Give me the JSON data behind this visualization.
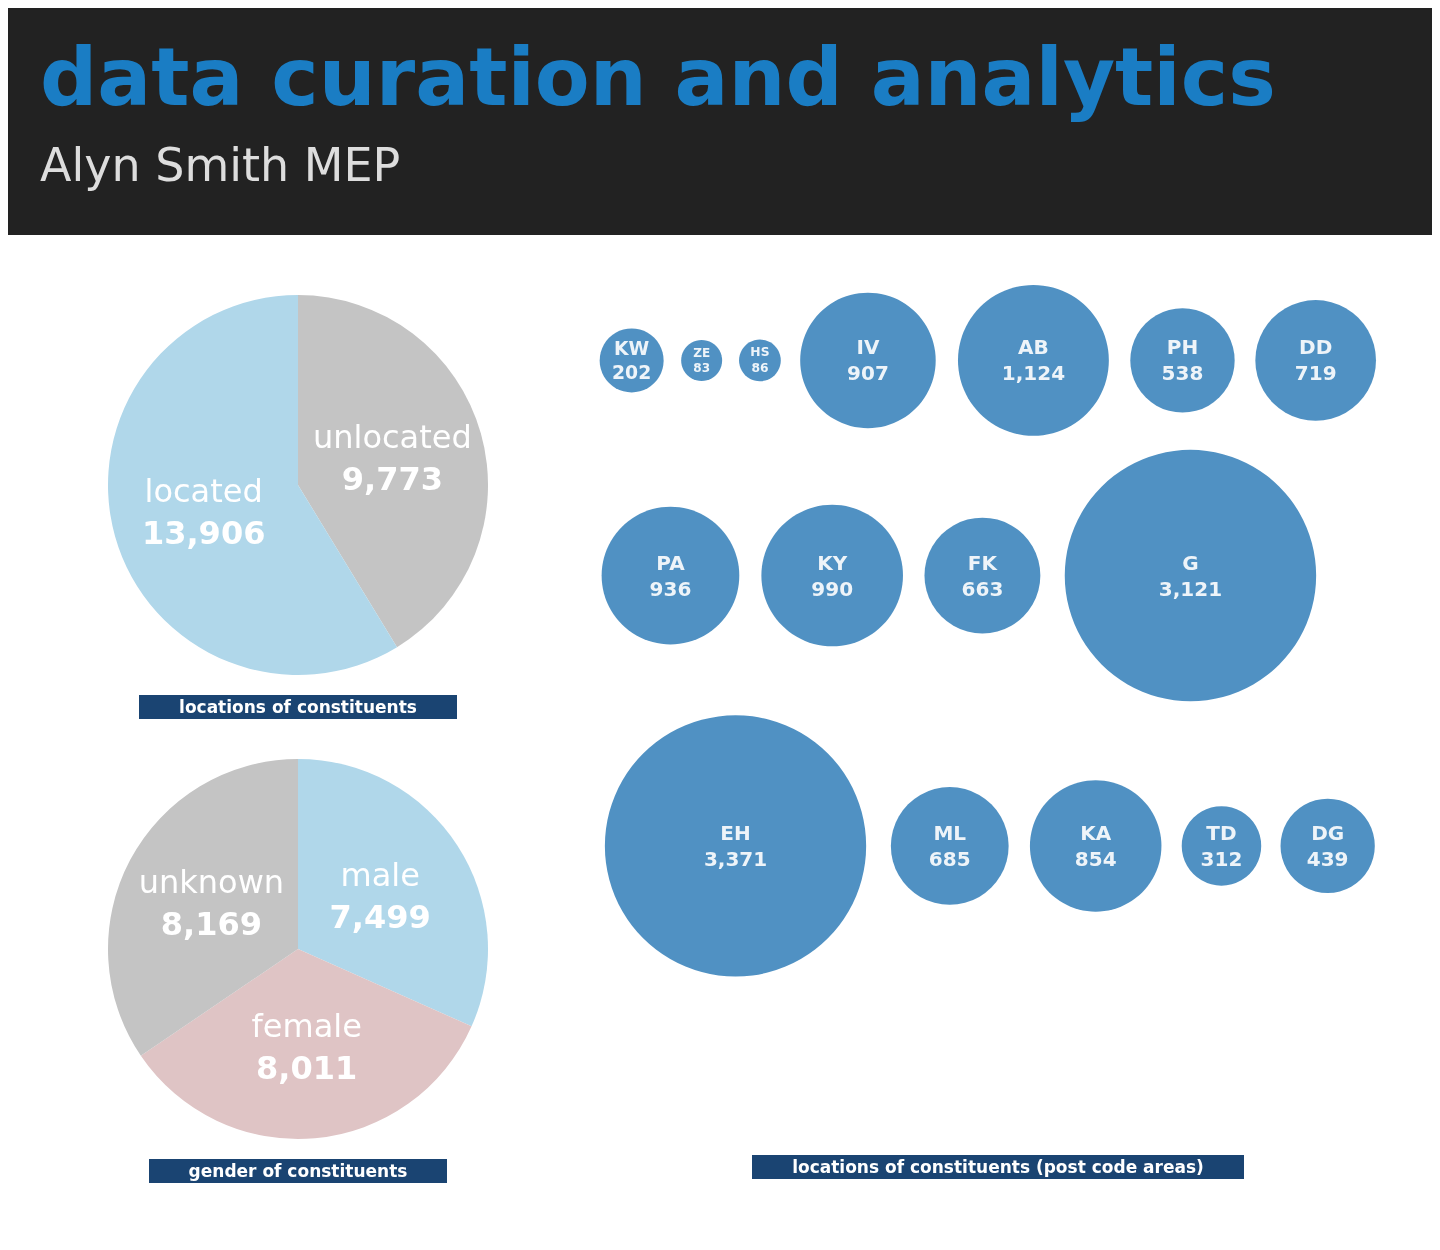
{
  "chart_data": [
    {
      "type": "pie",
      "title": "data curation and analytics",
      "subtitle": "Alyn Smith MEP",
      "categories": [
        "unlocated",
        "located"
      ],
      "values": [
        9773,
        13906
      ],
      "value_labels": [
        "9,773",
        "13,906"
      ],
      "colors": [
        "#c4c4c4",
        "#b0d7ea"
      ],
      "data_labels": true,
      "annotations": [
        "locations of constituents"
      ]
    },
    {
      "type": "pie",
      "categories": [
        "male",
        "female",
        "unknown"
      ],
      "values": [
        7499,
        8011,
        8169
      ],
      "value_labels": [
        "7,499",
        "8,011",
        "8,169"
      ],
      "colors": [
        "#b0d7ea",
        "#dfc4c5",
        "#c4c4c4"
      ],
      "data_labels": true,
      "annotations": [
        "gender of constituents"
      ]
    },
    {
      "type": "other",
      "categories": [
        "KW",
        "ZE",
        "HS",
        "IV",
        "AB",
        "PH",
        "DD",
        "PA",
        "KY",
        "FK",
        "G",
        "EH",
        "ML",
        "KA",
        "TD",
        "DG"
      ],
      "values": [
        202,
        83,
        86,
        907,
        1124,
        538,
        719,
        936,
        990,
        663,
        3121,
        3371,
        685,
        854,
        312,
        439
      ],
      "value_labels": [
        "202",
        "83",
        "86",
        "907",
        "1,124",
        "538",
        "719",
        "936",
        "990",
        "663",
        "3,121",
        "3,371",
        "685",
        "854",
        "312",
        "439"
      ],
      "color": "#3d85bd",
      "data_labels": true,
      "annotations": [
        "locations of constituents (post code areas)"
      ]
    }
  ]
}
